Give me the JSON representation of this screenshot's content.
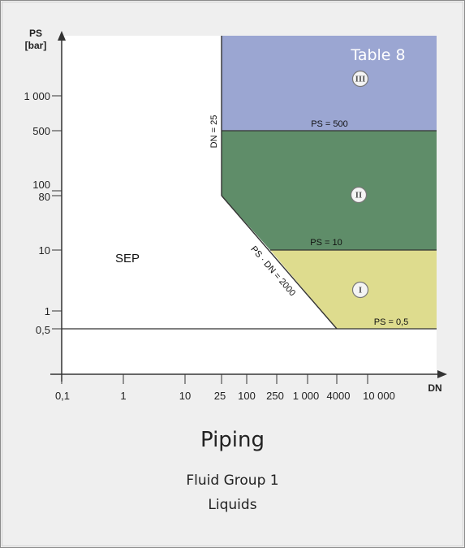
{
  "table_label": "Table 8",
  "y_axis": {
    "title_line1": "PS",
    "title_line2": "[bar]",
    "ticks": [
      "1 000",
      "500",
      "100",
      "80",
      "10",
      "1",
      "0,5"
    ]
  },
  "x_axis": {
    "title": "DN",
    "ticks": [
      "0,1",
      "1",
      "10",
      "25",
      "100",
      "250",
      "1 000",
      "4000",
      "10 000"
    ]
  },
  "region_labels": {
    "sep": "SEP",
    "cat_1": "I",
    "cat_2": "II",
    "cat_3": "III"
  },
  "line_labels": {
    "ps500": "PS = 500",
    "ps10": "PS = 10",
    "ps05": "PS = 0,5",
    "dn25": "DN = 25",
    "psdn": "PS · DN = 2000"
  },
  "colors": {
    "cat_1": "#dedc8e",
    "cat_2": "#5f8d69",
    "cat_3": "#9ba6d2"
  },
  "caption": {
    "title": "Piping",
    "line1": "Fluid Group 1",
    "line2": "Liquids"
  }
}
